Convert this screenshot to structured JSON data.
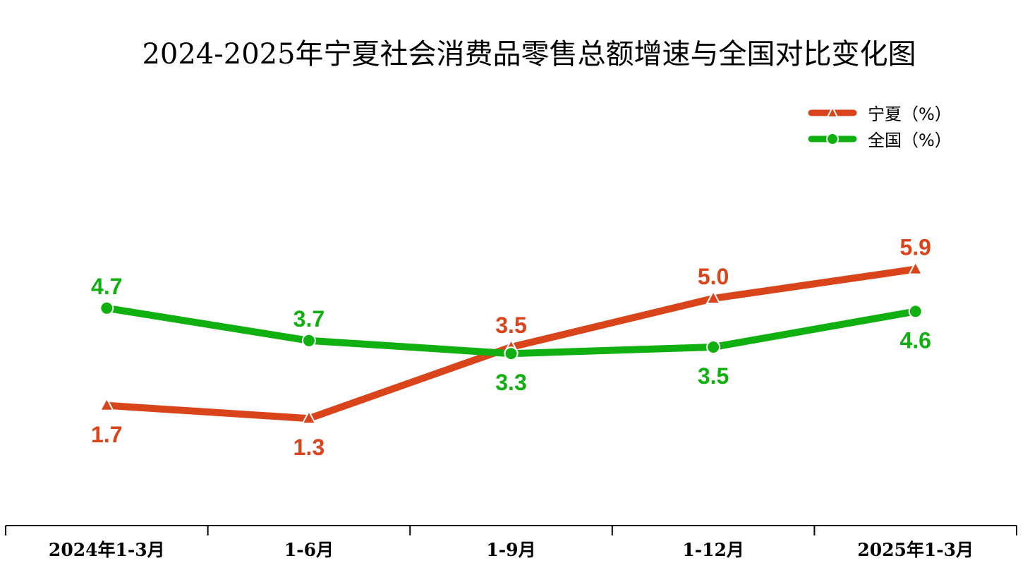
{
  "chart_data": {
    "type": "line",
    "title": "2024-2025年宁夏社会消费品零售总额增速与全国对比变化图",
    "xlabel": "",
    "ylabel": "",
    "categories": [
      "2024年1-3月",
      "1-6月",
      "1-9月",
      "1-12月",
      "2025年1-3月"
    ],
    "ylim": [
      -2,
      8
    ],
    "grid": false,
    "legend_position": "top-right",
    "series": [
      {
        "name": "宁夏（%）",
        "values": [
          1.7,
          1.3,
          3.5,
          5.0,
          5.9
        ],
        "labels": [
          "1.7",
          "1.3",
          "3.5",
          "5.0",
          "5.9"
        ],
        "color": "#D9441A",
        "marker": "triangle"
      },
      {
        "name": "全国（%）",
        "values": [
          4.7,
          3.7,
          3.3,
          3.5,
          4.6
        ],
        "labels": [
          "4.7",
          "3.7",
          "3.3",
          "3.5",
          "4.6"
        ],
        "color": "#11B011",
        "marker": "circle"
      }
    ]
  }
}
